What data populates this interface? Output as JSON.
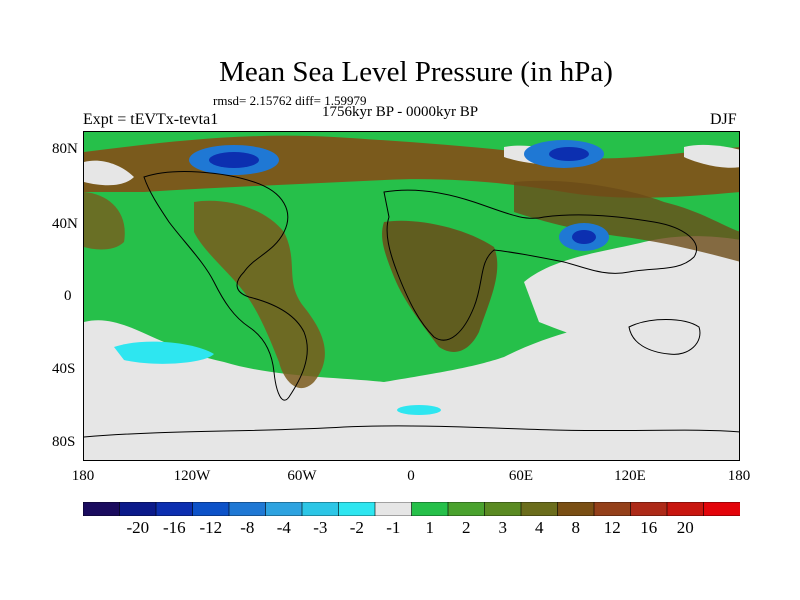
{
  "title": "Mean Sea Level Pressure (in hPa)",
  "stats": "rmsd= 2.15762 diff= 1.59979",
  "period": "1756kyr BP - 0000kyr BP",
  "experiment": "Expt = tEVTx-tevta1",
  "season": "DJF",
  "lat_labels": [
    "80N",
    "40N",
    "0",
    "40S",
    "80S"
  ],
  "lon_labels": [
    "180",
    "120W",
    "60W",
    "0",
    "60E",
    "120E",
    "180"
  ],
  "colorbar": {
    "colors": [
      "#1a0b5e",
      "#0b1a8a",
      "#0c2fb0",
      "#0d52c8",
      "#1f78d4",
      "#2ea3e0",
      "#2cc6e6",
      "#2ee6f0",
      "#e6e6e6",
      "#26c04a",
      "#4aa22e",
      "#5a8a22",
      "#6b6d1c",
      "#7a4f14",
      "#94401a",
      "#ad2a18",
      "#c8160f",
      "#e3040a"
    ],
    "labels": [
      "-20",
      "-16",
      "-12",
      "-8",
      "-4",
      "-3",
      "-2",
      "-1",
      "1",
      "2",
      "3",
      "4",
      "8",
      "12",
      "16",
      "20"
    ]
  },
  "palette": {
    "ocean_pos": "#26c04a",
    "land_mid": "#4aa22e",
    "brown": "#7a5a1c",
    "darkbrown": "#6b4b18",
    "neutral": "#e6e6e6",
    "cyan": "#2ee6f0",
    "blue": "#1f78d4",
    "darkblue": "#0c2fb0"
  }
}
